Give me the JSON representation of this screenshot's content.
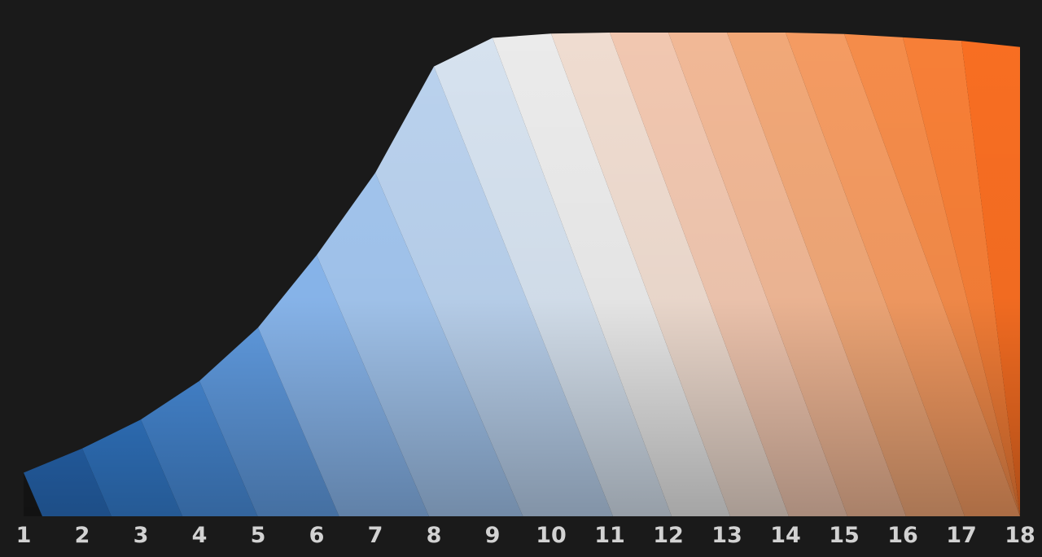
{
  "chart_data": {
    "type": "area",
    "title": "",
    "xlabel": "",
    "ylabel": "",
    "categories": [
      "1",
      "2",
      "3",
      "4",
      "5",
      "6",
      "7",
      "8",
      "9",
      "10",
      "11",
      "12",
      "13",
      "14",
      "15",
      "16",
      "17",
      "18"
    ],
    "x": [
      1,
      2,
      3,
      4,
      5,
      6,
      7,
      8,
      9,
      10,
      11,
      12,
      13,
      14,
      15,
      16,
      17,
      18
    ],
    "ylim": [
      0,
      1
    ],
    "values": [
      0.09,
      0.14,
      0.2,
      0.28,
      0.39,
      0.54,
      0.71,
      0.93,
      0.989,
      0.998,
      1.0,
      1.0,
      1.0,
      1.0,
      0.997,
      0.99,
      0.983,
      0.97
    ],
    "grid": false,
    "legend": "none",
    "colors": [
      "#2a6fc0",
      "#3580d4",
      "#4a90e0",
      "#629fe6",
      "#8ab8ef",
      "#a3c6ef",
      "#bad2ee",
      "#d6e2ef",
      "#ebebeb",
      "#efdcd0",
      "#f1c7b0",
      "#f1b896",
      "#f1a878",
      "#f49b62",
      "#f58c4a",
      "#f77f37",
      "#f86e22"
    ]
  }
}
